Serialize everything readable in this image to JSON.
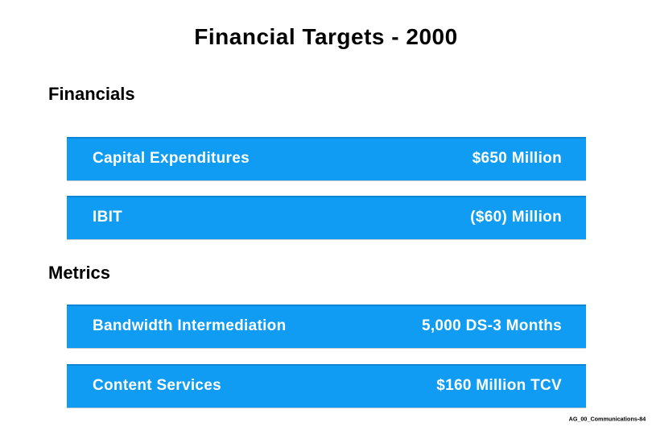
{
  "slide": {
    "title": "Financial Targets - 2000",
    "sections": [
      {
        "heading": "Financials",
        "rows": [
          {
            "label": "Capital Expenditures",
            "value": "$650 Million"
          },
          {
            "label": "IBIT",
            "value": "($60) Million"
          }
        ]
      },
      {
        "heading": "Metrics",
        "rows": [
          {
            "label": "Bandwidth Intermediation",
            "value": "5,000 DS-3 Months"
          },
          {
            "label": "Content Services",
            "value": "$160 Million TCV"
          }
        ]
      }
    ],
    "footer": "AG_00_Communications-84",
    "colors": {
      "bar_fill": "#0f9cf2",
      "bar_text": "#ffffff",
      "title_text": "#000000",
      "heading_text": "#000000",
      "background": "#ffffff"
    }
  }
}
